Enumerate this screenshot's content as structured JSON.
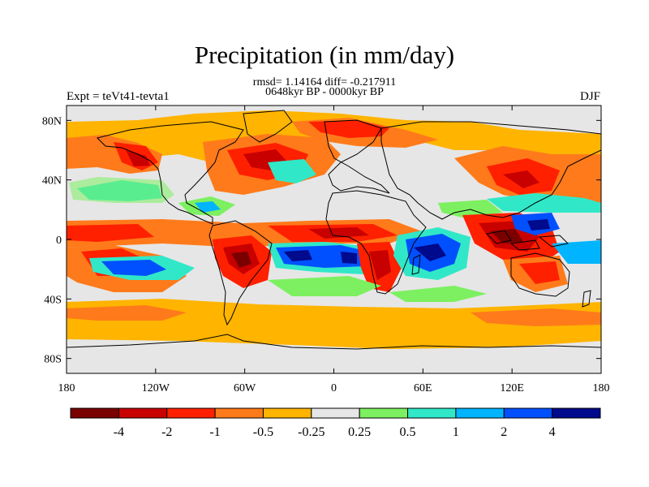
{
  "title": "Precipitation (in mm/day)",
  "stats_line": "rmsd= 1.14164 diff= -0.217911",
  "period_line": "0648kyr BP - 0000kyr BP",
  "experiment_label": "Expt = teVt41-tevta1",
  "season_label": "DJF",
  "map": {
    "projection": "cylindrical-equidistant",
    "lon_range": [
      -180,
      180
    ],
    "lat_range": [
      -90,
      90
    ],
    "background_color": "#e6e6e6",
    "coastline_color": "#000000",
    "lat_ticks": [
      {
        "lat": 80,
        "label": "80N"
      },
      {
        "lat": 40,
        "label": "40N"
      },
      {
        "lat": 0,
        "label": "0"
      },
      {
        "lat": -40,
        "label": "40S"
      },
      {
        "lat": -80,
        "label": "80S"
      }
    ],
    "lon_ticks": [
      {
        "lon": -180,
        "label": "180"
      },
      {
        "lon": -120,
        "label": "120W"
      },
      {
        "lon": -60,
        "label": "60W"
      },
      {
        "lon": 0,
        "label": "0"
      },
      {
        "lon": 60,
        "label": "60E"
      },
      {
        "lon": 120,
        "label": "120E"
      },
      {
        "lon": 180,
        "label": "180"
      }
    ]
  },
  "colorbar": {
    "colors": [
      "#7a0000",
      "#c80000",
      "#ff2000",
      "#ff7a1a",
      "#ffb400",
      "#e6e6e6",
      "#7cf060",
      "#30e8c8",
      "#00b4ff",
      "#0050ff",
      "#000a8c"
    ],
    "labels": [
      "-4",
      "-2",
      "-1",
      "-0.5",
      "-0.25",
      "0.25",
      "0.5",
      "1",
      "2",
      "4"
    ]
  }
}
